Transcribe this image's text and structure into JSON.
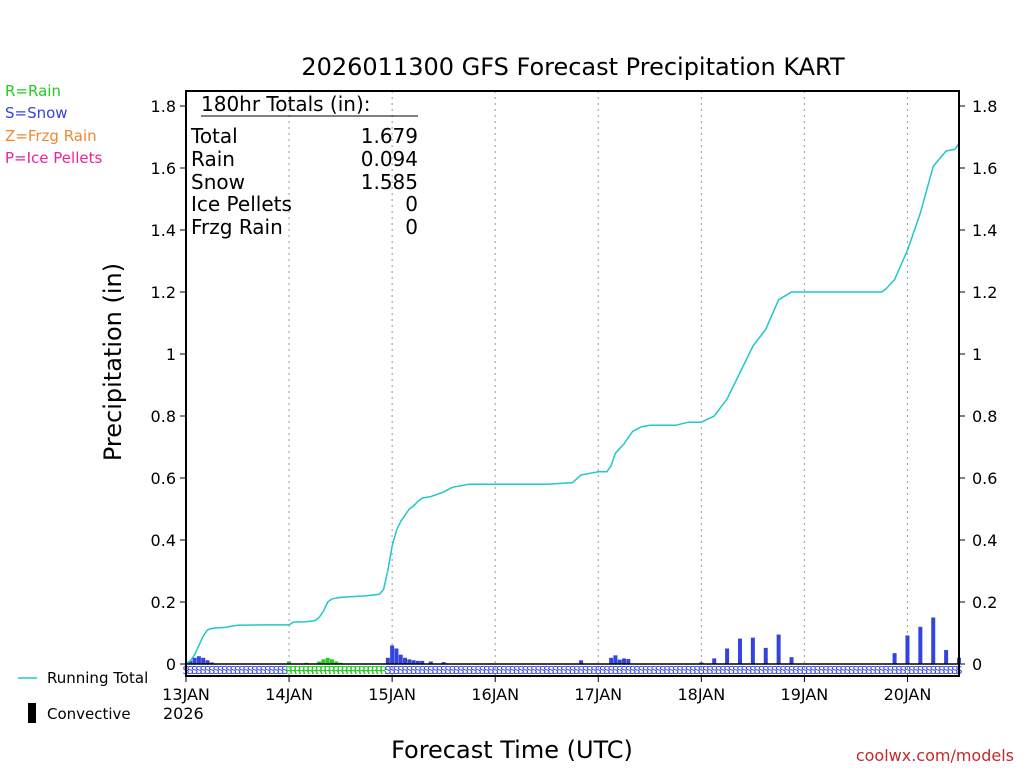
{
  "chart_data": {
    "type": "bar",
    "title": "2026011300 GFS Forecast Precipitation KART",
    "xlabel": "Forecast Time (UTC)",
    "ylabel": "Precipitation (in)",
    "ylim": [
      0,
      1.85
    ],
    "xlim_hours": [
      0,
      180
    ],
    "y_ticks": [
      "0",
      "0.2",
      "0.4",
      "0.6",
      "0.8",
      "1",
      "1.2",
      "1.4",
      "1.6",
      "1.8"
    ],
    "y_tick_values": [
      0,
      0.2,
      0.4,
      0.6,
      0.8,
      1.0,
      1.2,
      1.4,
      1.6,
      1.8
    ],
    "x_ticks": [
      {
        "label": "13JAN",
        "hour": 0
      },
      {
        "label": "14JAN",
        "hour": 24
      },
      {
        "label": "15JAN",
        "hour": 48
      },
      {
        "label": "16JAN",
        "hour": 72
      },
      {
        "label": "17JAN",
        "hour": 96
      },
      {
        "label": "18JAN",
        "hour": 120
      },
      {
        "label": "19JAN",
        "hour": 144
      },
      {
        "label": "20JAN",
        "hour": 168
      }
    ],
    "year_label": "2026",
    "precip_type_legend": [
      {
        "label": "R=Rain",
        "color": "#22cc22"
      },
      {
        "label": "S=Snow",
        "color": "#3344dd"
      },
      {
        "label": "Z=Frzg Rain",
        "color": "#ee8833"
      },
      {
        "label": "P=Ice Pellets",
        "color": "#ee2299"
      }
    ],
    "series_legend": {
      "running_total": "Running Total",
      "convective": "Convective"
    },
    "totals": {
      "header": "180hr Totals (in):",
      "rows": [
        {
          "label": "Total",
          "value": "1.679"
        },
        {
          "label": "Rain",
          "value": "0.094"
        },
        {
          "label": "Snow",
          "value": "1.585"
        },
        {
          "label": "Ice Pellets",
          "value": "0"
        },
        {
          "label": "Frzg Rain",
          "value": "0"
        }
      ]
    },
    "running_total": [
      [
        0,
        0
      ],
      [
        1,
        0.01
      ],
      [
        2,
        0.03
      ],
      [
        3,
        0.06
      ],
      [
        4,
        0.09
      ],
      [
        5,
        0.11
      ],
      [
        6,
        0.115
      ],
      [
        9,
        0.118
      ],
      [
        12,
        0.125
      ],
      [
        18,
        0.126
      ],
      [
        24,
        0.126
      ],
      [
        25,
        0.135
      ],
      [
        28,
        0.136
      ],
      [
        30,
        0.14
      ],
      [
        31,
        0.15
      ],
      [
        32,
        0.17
      ],
      [
        33,
        0.2
      ],
      [
        34,
        0.21
      ],
      [
        36,
        0.215
      ],
      [
        42,
        0.22
      ],
      [
        45,
        0.225
      ],
      [
        46,
        0.24
      ],
      [
        47,
        0.3
      ],
      [
        48,
        0.38
      ],
      [
        49,
        0.43
      ],
      [
        50,
        0.46
      ],
      [
        51,
        0.48
      ],
      [
        52,
        0.5
      ],
      [
        53,
        0.51
      ],
      [
        54,
        0.525
      ],
      [
        55,
        0.535
      ],
      [
        57,
        0.54
      ],
      [
        60,
        0.555
      ],
      [
        62,
        0.57
      ],
      [
        64,
        0.575
      ],
      [
        66,
        0.58
      ],
      [
        72,
        0.58
      ],
      [
        84,
        0.58
      ],
      [
        90,
        0.585
      ],
      [
        92,
        0.61
      ],
      [
        96,
        0.62
      ],
      [
        98,
        0.62
      ],
      [
        99,
        0.64
      ],
      [
        100,
        0.68
      ],
      [
        102,
        0.71
      ],
      [
        104,
        0.75
      ],
      [
        106,
        0.765
      ],
      [
        108,
        0.77
      ],
      [
        114,
        0.77
      ],
      [
        117,
        0.78
      ],
      [
        120,
        0.78
      ],
      [
        123,
        0.8
      ],
      [
        126,
        0.855
      ],
      [
        129,
        0.94
      ],
      [
        132,
        1.025
      ],
      [
        135,
        1.08
      ],
      [
        138,
        1.175
      ],
      [
        141,
        1.2
      ],
      [
        144,
        1.2
      ],
      [
        150,
        1.2
      ],
      [
        156,
        1.2
      ],
      [
        162,
        1.2
      ],
      [
        163,
        1.21
      ],
      [
        165,
        1.24
      ],
      [
        168,
        1.335
      ],
      [
        171,
        1.455
      ],
      [
        174,
        1.605
      ],
      [
        177,
        1.655
      ],
      [
        179,
        1.66
      ],
      [
        180,
        1.679
      ]
    ],
    "bars": [
      {
        "hour": 1,
        "value": 0.01,
        "type": "snow"
      },
      {
        "hour": 2,
        "value": 0.02,
        "type": "snow"
      },
      {
        "hour": 3,
        "value": 0.025,
        "type": "snow"
      },
      {
        "hour": 4,
        "value": 0.02,
        "type": "snow"
      },
      {
        "hour": 5,
        "value": 0.012,
        "type": "snow"
      },
      {
        "hour": 6,
        "value": 0.005,
        "type": "snow"
      },
      {
        "hour": 24,
        "value": 0.008,
        "type": "rain"
      },
      {
        "hour": 28,
        "value": 0.004,
        "type": "rain"
      },
      {
        "hour": 31,
        "value": 0.008,
        "type": "rain"
      },
      {
        "hour": 32,
        "value": 0.015,
        "type": "rain"
      },
      {
        "hour": 33,
        "value": 0.02,
        "type": "rain"
      },
      {
        "hour": 34,
        "value": 0.015,
        "type": "rain"
      },
      {
        "hour": 35,
        "value": 0.008,
        "type": "rain"
      },
      {
        "hour": 36,
        "value": 0.004,
        "type": "rain"
      },
      {
        "hour": 47,
        "value": 0.02,
        "type": "snow"
      },
      {
        "hour": 48,
        "value": 0.06,
        "type": "snow"
      },
      {
        "hour": 49,
        "value": 0.05,
        "type": "snow"
      },
      {
        "hour": 50,
        "value": 0.03,
        "type": "snow"
      },
      {
        "hour": 51,
        "value": 0.02,
        "type": "snow"
      },
      {
        "hour": 52,
        "value": 0.015,
        "type": "snow"
      },
      {
        "hour": 53,
        "value": 0.012,
        "type": "snow"
      },
      {
        "hour": 54,
        "value": 0.01,
        "type": "snow"
      },
      {
        "hour": 55,
        "value": 0.01,
        "type": "snow"
      },
      {
        "hour": 57,
        "value": 0.008,
        "type": "snow"
      },
      {
        "hour": 60,
        "value": 0.006,
        "type": "snow"
      },
      {
        "hour": 92,
        "value": 0.012,
        "type": "snow"
      },
      {
        "hour": 99,
        "value": 0.02,
        "type": "snow"
      },
      {
        "hour": 100,
        "value": 0.028,
        "type": "snow"
      },
      {
        "hour": 101,
        "value": 0.014,
        "type": "snow"
      },
      {
        "hour": 102,
        "value": 0.018,
        "type": "snow"
      },
      {
        "hour": 103,
        "value": 0.016,
        "type": "snow"
      },
      {
        "hour": 120,
        "value": 0.005,
        "type": "snow"
      },
      {
        "hour": 123,
        "value": 0.018,
        "type": "snow"
      },
      {
        "hour": 126,
        "value": 0.05,
        "type": "snow"
      },
      {
        "hour": 129,
        "value": 0.082,
        "type": "snow"
      },
      {
        "hour": 132,
        "value": 0.085,
        "type": "snow"
      },
      {
        "hour": 135,
        "value": 0.052,
        "type": "snow"
      },
      {
        "hour": 138,
        "value": 0.095,
        "type": "snow"
      },
      {
        "hour": 141,
        "value": 0.022,
        "type": "snow"
      },
      {
        "hour": 165,
        "value": 0.035,
        "type": "snow"
      },
      {
        "hour": 168,
        "value": 0.092,
        "type": "snow"
      },
      {
        "hour": 171,
        "value": 0.12,
        "type": "snow"
      },
      {
        "hour": 174,
        "value": 0.15,
        "type": "snow"
      },
      {
        "hour": 177,
        "value": 0.045,
        "type": "snow"
      },
      {
        "hour": 180,
        "value": 0.02,
        "type": "snow"
      }
    ],
    "ptype_marks": [
      {
        "start": 0,
        "end": 23,
        "type": "snow"
      },
      {
        "start": 24,
        "end": 46,
        "type": "rain"
      },
      {
        "start": 47,
        "end": 180,
        "type": "snow"
      }
    ],
    "colors": {
      "running_total": "#22c7c7",
      "rain": "#22cc22",
      "snow": "#3344dd",
      "frzg_rain": "#ee8833",
      "ice_pellets": "#ee2299",
      "grid": "#999999",
      "credit": "#c42a2a"
    }
  },
  "credit": "coolwx.com/models"
}
